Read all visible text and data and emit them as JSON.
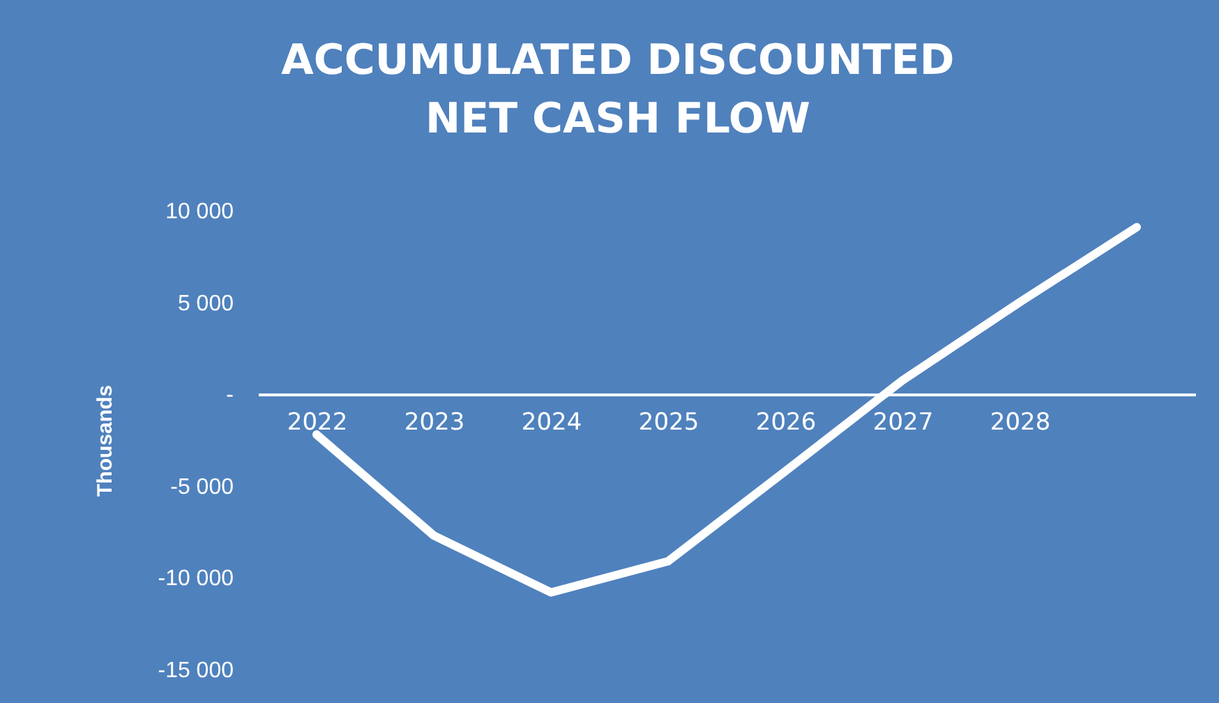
{
  "chart_data": {
    "type": "line",
    "title": "ACCUMULATED DISCOUNTED\nNET CASH FLOW",
    "ylabel": "Thousands",
    "categories": [
      "2022",
      "2023",
      "2024",
      "2025",
      "2026",
      "2027",
      "2028",
      null
    ],
    "series": [
      {
        "color": "#ffffff",
        "values": [
          -2200,
          -7700,
          -10800,
          -9100,
          -4200,
          750,
          5000,
          9100
        ]
      }
    ],
    "ylim": [
      -15000,
      10000
    ],
    "yticks": [
      {
        "value": 10000,
        "label": "10 000"
      },
      {
        "value": 5000,
        "label": "5 000"
      },
      {
        "value": 0,
        "label": "-"
      },
      {
        "value": -5000,
        "label": "-5 000"
      },
      {
        "value": -10000,
        "label": "-10 000"
      },
      {
        "value": -15000,
        "label": "-15 000"
      }
    ],
    "grid": false,
    "marker": "none",
    "line_style": "solid"
  }
}
